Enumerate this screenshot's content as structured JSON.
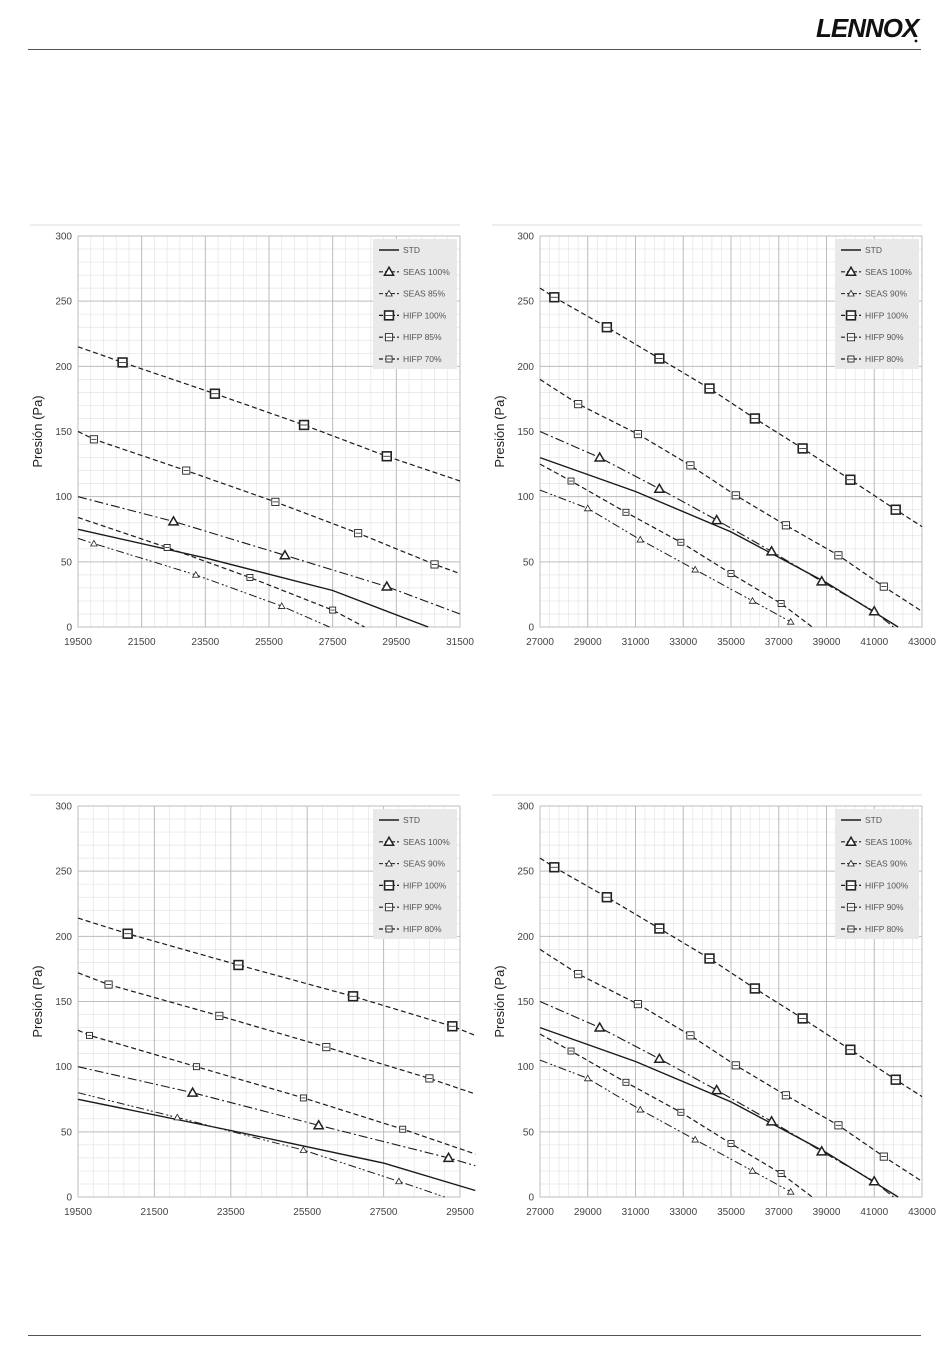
{
  "brand": {
    "logo_text": "LENNOX"
  },
  "chart_data": [
    {
      "type": "line",
      "ylabel": "Presión (Pa)",
      "xlim": [
        19500,
        31500
      ],
      "ylim": [
        0,
        300
      ],
      "xticks": [
        19500,
        21500,
        23500,
        25500,
        27500,
        29500,
        31500
      ],
      "yticks": [
        0,
        50,
        100,
        150,
        200,
        250,
        300
      ],
      "grid": true,
      "legend_position": "top-right",
      "series": [
        {
          "name": "STD",
          "style": "solid",
          "marker": "none",
          "x": [
            19500,
            23500,
            27500,
            30500
          ],
          "y": [
            75,
            53,
            28,
            0
          ]
        },
        {
          "name": "SEAS 100%",
          "style": "dashdot",
          "marker": "triangle-bold",
          "x": [
            19500,
            22500,
            26000,
            29200,
            31500
          ],
          "y": [
            100,
            81,
            55,
            31,
            10
          ]
        },
        {
          "name": "SEAS 85%",
          "style": "dashdotdot",
          "marker": "triangle",
          "x": [
            19500,
            20000,
            23200,
            25900,
            27400
          ],
          "y": [
            68,
            64,
            40,
            16,
            0
          ]
        },
        {
          "name": "HIFP 100%",
          "style": "dashed",
          "marker": "square-bold",
          "x": [
            19500,
            20900,
            23800,
            26600,
            29200,
            31500
          ],
          "y": [
            215,
            203,
            179,
            155,
            131,
            112
          ]
        },
        {
          "name": "HIFP 85%",
          "style": "dashed",
          "marker": "square",
          "x": [
            19500,
            20000,
            22900,
            25700,
            28300,
            30700,
            31500
          ],
          "y": [
            150,
            144,
            120,
            96,
            72,
            48,
            41
          ]
        },
        {
          "name": "HIFP 70%",
          "style": "dashed",
          "marker": "square-small",
          "x": [
            19500,
            22300,
            24900,
            27500,
            28500
          ],
          "y": [
            84,
            61,
            38,
            13,
            0
          ]
        }
      ]
    },
    {
      "type": "line",
      "ylabel": "Presión (Pa)",
      "xlim": [
        27000,
        43000
      ],
      "ylim": [
        0,
        300
      ],
      "xticks": [
        27000,
        29000,
        31000,
        33000,
        35000,
        37000,
        39000,
        41000,
        43000
      ],
      "yticks": [
        0,
        50,
        100,
        150,
        200,
        250,
        300
      ],
      "grid": true,
      "legend_position": "top-right",
      "series": [
        {
          "name": "STD",
          "style": "solid",
          "marker": "none",
          "x": [
            27000,
            31000,
            35000,
            39000,
            42000
          ],
          "y": [
            130,
            104,
            73,
            34,
            0
          ]
        },
        {
          "name": "SEAS 100%",
          "style": "dashdot",
          "marker": "triangle-bold",
          "x": [
            27000,
            29500,
            32000,
            34400,
            36700,
            38800,
            41000,
            41800
          ],
          "y": [
            150,
            130,
            106,
            82,
            58,
            35,
            12,
            0
          ]
        },
        {
          "name": "SEAS 90%",
          "style": "dashdotdot",
          "marker": "triangle",
          "x": [
            27000,
            29000,
            31200,
            33500,
            35900,
            37500
          ],
          "y": [
            105,
            91,
            67,
            44,
            20,
            4
          ]
        },
        {
          "name": "HIFP 100%",
          "style": "dashed",
          "marker": "square-bold",
          "x": [
            27000,
            27600,
            29800,
            32000,
            34100,
            36000,
            38000,
            40000,
            41900,
            43000
          ],
          "y": [
            260,
            253,
            230,
            206,
            183,
            160,
            137,
            113,
            90,
            77
          ]
        },
        {
          "name": "HIFP 90%",
          "style": "dashed",
          "marker": "square",
          "x": [
            27000,
            28600,
            31100,
            33300,
            35200,
            37300,
            39500,
            41400,
            43000
          ],
          "y": [
            190,
            171,
            148,
            124,
            101,
            78,
            55,
            31,
            12
          ]
        },
        {
          "name": "HIFP 80%",
          "style": "dashed",
          "marker": "square-small",
          "x": [
            27000,
            28300,
            30600,
            32900,
            35000,
            37100,
            38400
          ],
          "y": [
            125,
            112,
            88,
            65,
            41,
            18,
            0
          ]
        }
      ]
    },
    {
      "type": "line",
      "ylabel": "Presión (Pa)",
      "xlim": [
        19500,
        29500
      ],
      "ylim": [
        0,
        300
      ],
      "xticks": [
        19500,
        21500,
        23500,
        25500,
        27500,
        29500
      ],
      "yticks": [
        0,
        50,
        100,
        150,
        200,
        250,
        300
      ],
      "grid": true,
      "legend_position": "top-right",
      "series": [
        {
          "name": "STD",
          "style": "solid",
          "marker": "none",
          "x": [
            19500,
            23500,
            27500,
            29900
          ],
          "y": [
            75,
            51,
            26,
            5
          ]
        },
        {
          "name": "SEAS 100%",
          "style": "dashdot",
          "marker": "triangle-bold",
          "x": [
            19500,
            22500,
            25800,
            29200,
            29900
          ],
          "y": [
            100,
            80,
            55,
            30,
            24
          ]
        },
        {
          "name": "SEAS 90%",
          "style": "dashdotdot",
          "marker": "triangle",
          "x": [
            19500,
            22100,
            25400,
            27900,
            29100
          ],
          "y": [
            80,
            61,
            36,
            12,
            0
          ]
        },
        {
          "name": "HIFP 100%",
          "style": "dashed",
          "marker": "square-bold",
          "x": [
            19500,
            20800,
            23700,
            26700,
            29300,
            29900
          ],
          "y": [
            214,
            202,
            178,
            154,
            131,
            124
          ]
        },
        {
          "name": "HIFP 90%",
          "style": "dashed",
          "marker": "square",
          "x": [
            19500,
            20300,
            23200,
            26000,
            28700,
            29900
          ],
          "y": [
            172,
            163,
            139,
            115,
            91,
            79
          ]
        },
        {
          "name": "HIFP 80%",
          "style": "dashed",
          "marker": "square-small",
          "x": [
            19500,
            19800,
            22600,
            25400,
            28000,
            29900
          ],
          "y": [
            128,
            124,
            100,
            76,
            52,
            33
          ]
        }
      ]
    },
    {
      "type": "line",
      "ylabel": "Presión (Pa)",
      "xlim": [
        27000,
        43000
      ],
      "ylim": [
        0,
        300
      ],
      "xticks": [
        27000,
        29000,
        31000,
        33000,
        35000,
        37000,
        39000,
        41000,
        43000
      ],
      "yticks": [
        0,
        50,
        100,
        150,
        200,
        250,
        300
      ],
      "grid": true,
      "legend_position": "top-right",
      "series": [
        {
          "name": "STD",
          "style": "solid",
          "marker": "none",
          "x": [
            27000,
            31000,
            35000,
            39000,
            42000
          ],
          "y": [
            130,
            104,
            73,
            34,
            0
          ]
        },
        {
          "name": "SEAS 100%",
          "style": "dashdot",
          "marker": "triangle-bold",
          "x": [
            27000,
            29500,
            32000,
            34400,
            36700,
            38800,
            41000,
            41800
          ],
          "y": [
            150,
            130,
            106,
            82,
            58,
            35,
            12,
            0
          ]
        },
        {
          "name": "SEAS 90%",
          "style": "dashdotdot",
          "marker": "triangle",
          "x": [
            27000,
            29000,
            31200,
            33500,
            35900,
            37500
          ],
          "y": [
            105,
            91,
            67,
            44,
            20,
            4
          ]
        },
        {
          "name": "HIFP 100%",
          "style": "dashed",
          "marker": "square-bold",
          "x": [
            27000,
            27600,
            29800,
            32000,
            34100,
            36000,
            38000,
            40000,
            41900,
            43000
          ],
          "y": [
            260,
            253,
            230,
            206,
            183,
            160,
            137,
            113,
            90,
            77
          ]
        },
        {
          "name": "HIFP 90%",
          "style": "dashed",
          "marker": "square",
          "x": [
            27000,
            28600,
            31100,
            33300,
            35200,
            37300,
            39500,
            41400,
            43000
          ],
          "y": [
            190,
            171,
            148,
            124,
            101,
            78,
            55,
            31,
            12
          ]
        },
        {
          "name": "HIFP 80%",
          "style": "dashed",
          "marker": "square-small",
          "x": [
            27000,
            28300,
            30600,
            32900,
            35000,
            37100,
            38400
          ],
          "y": [
            125,
            112,
            88,
            65,
            41,
            18,
            0
          ]
        }
      ]
    }
  ]
}
